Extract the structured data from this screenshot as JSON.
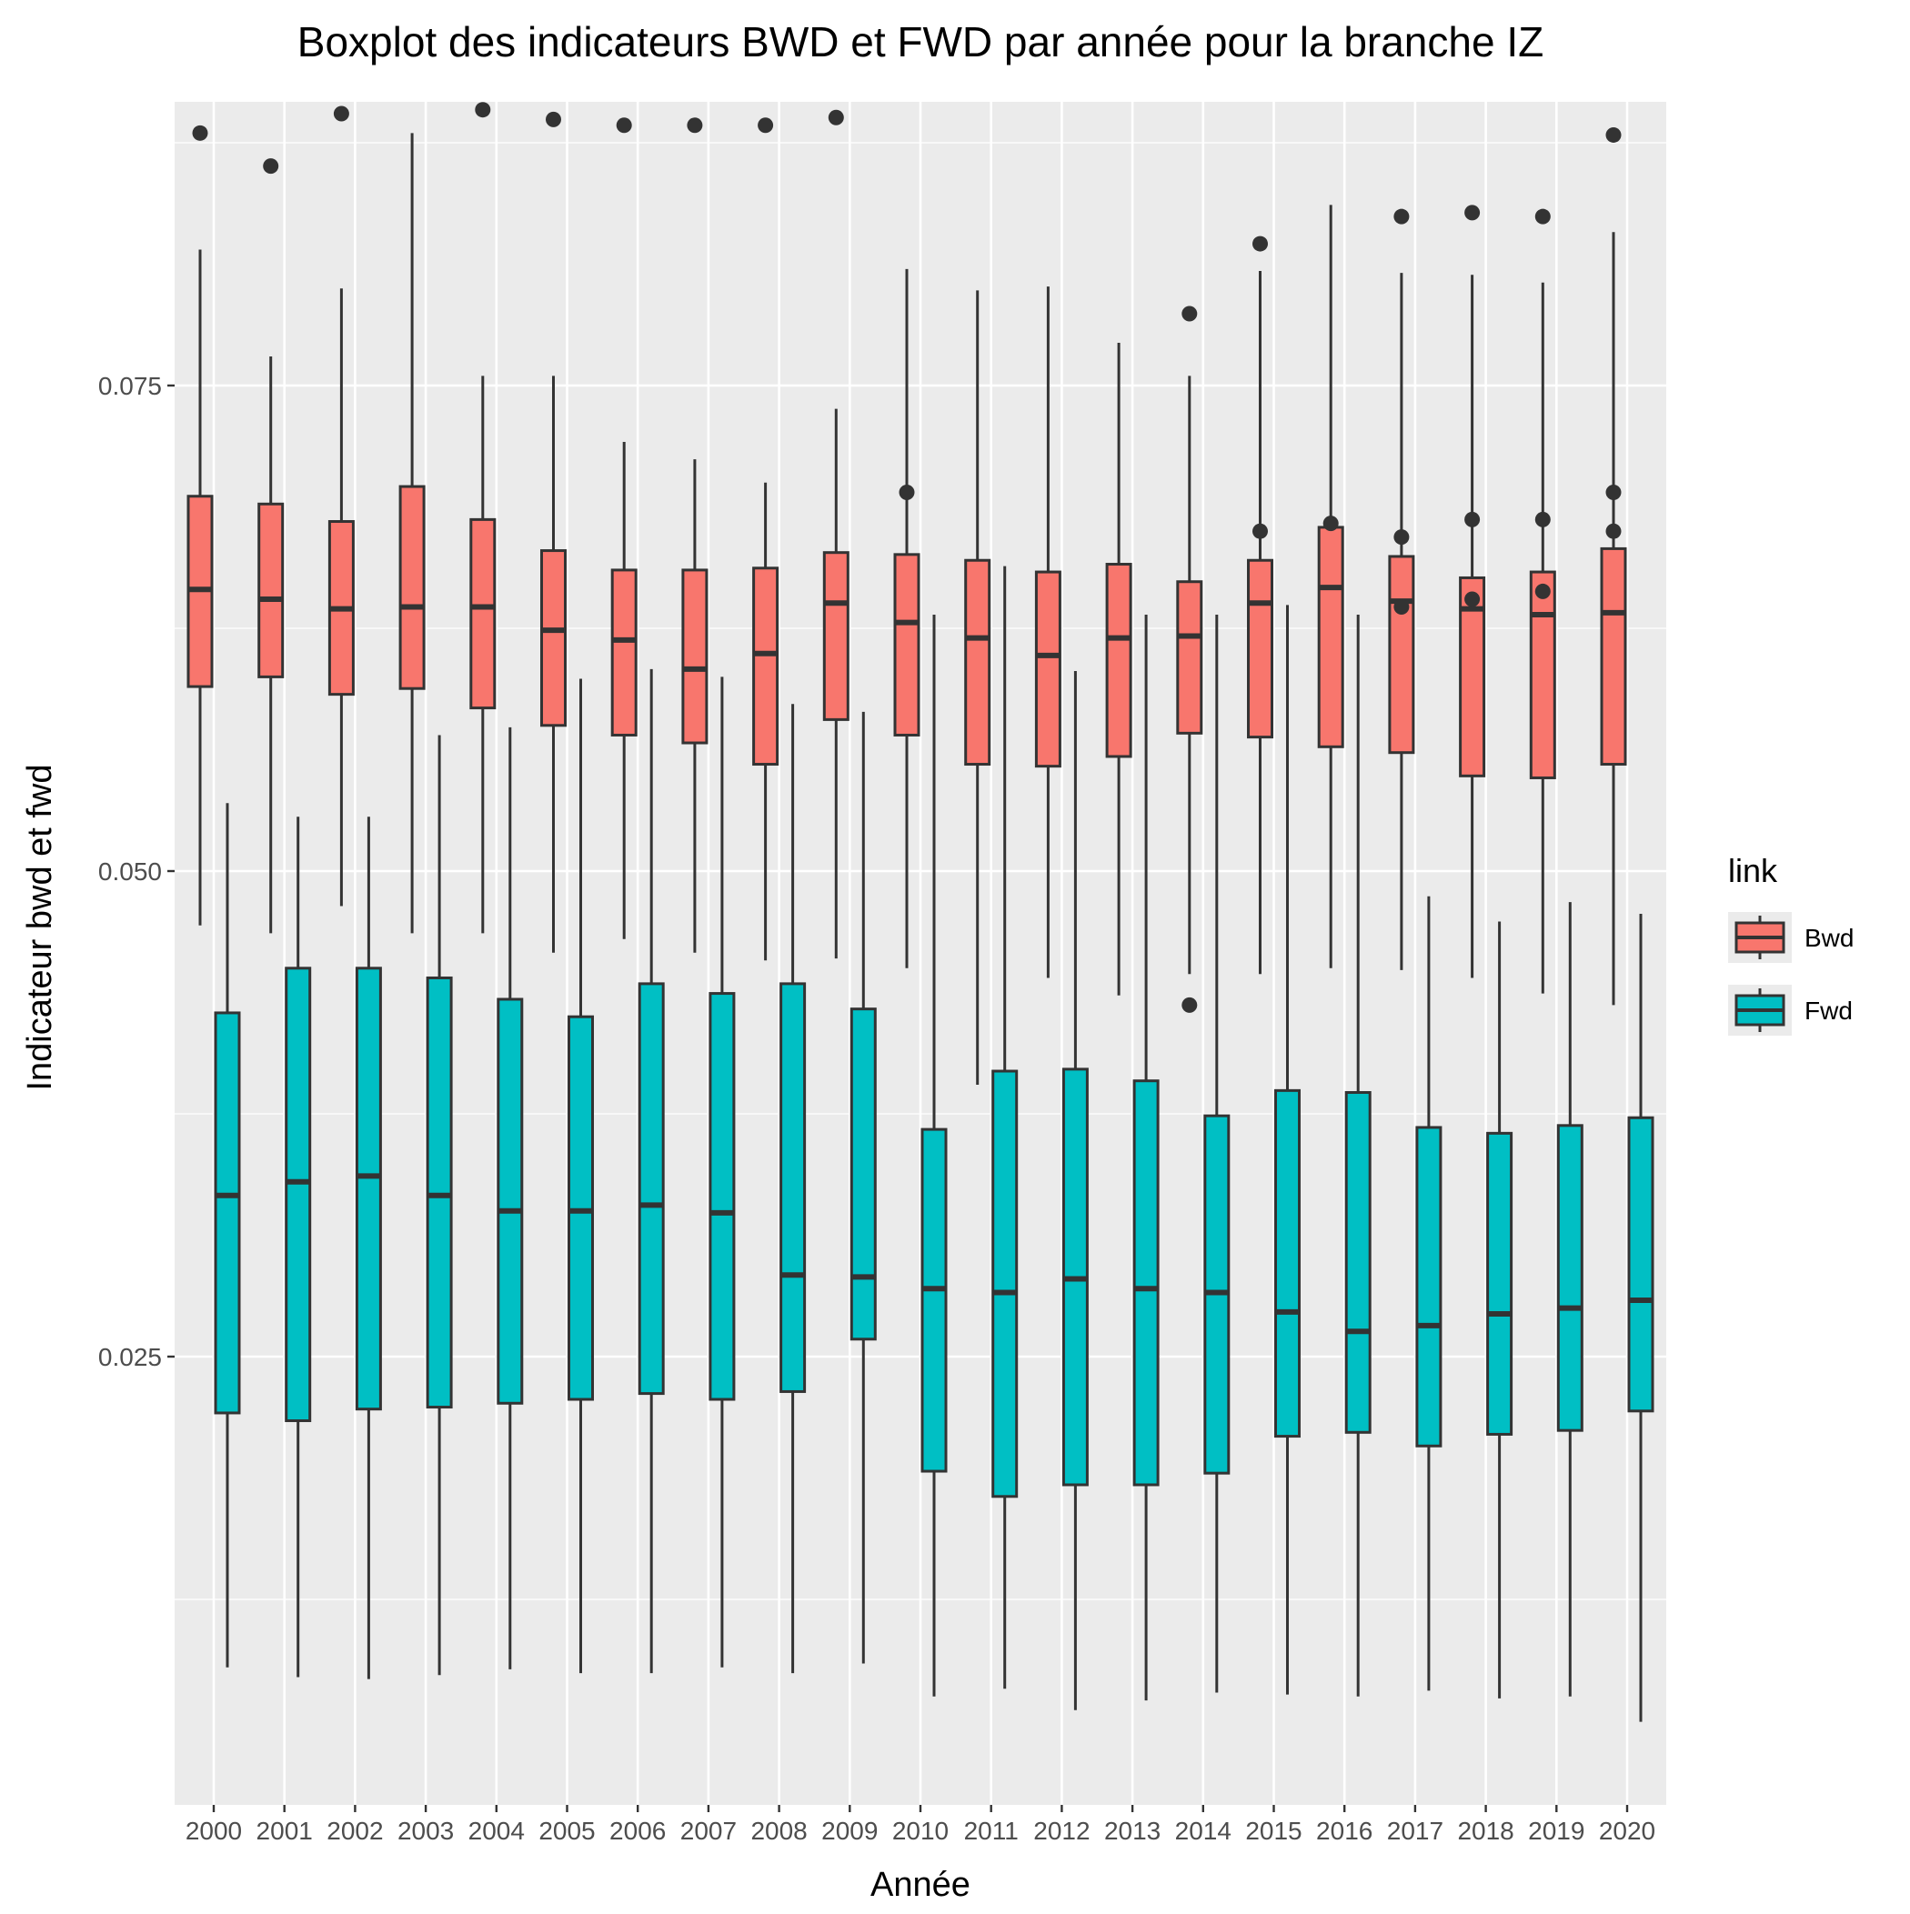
{
  "chart_data": {
    "type": "boxplot",
    "title": "Boxplot des indicateurs BWD et FWD par année pour la branche IZ",
    "xlabel": "Année",
    "ylabel": "Indicateur bwd et fwd",
    "categories": [
      "2000",
      "2001",
      "2002",
      "2003",
      "2004",
      "2005",
      "2006",
      "2007",
      "2008",
      "2009",
      "2010",
      "2011",
      "2012",
      "2013",
      "2014",
      "2015",
      "2016",
      "2017",
      "2018",
      "2019",
      "2020"
    ],
    "ylim": [
      0.0,
      0.094
    ],
    "yticks": [
      0.025,
      0.05,
      0.075
    ],
    "ytick_labels": [
      "0.025",
      "0.050",
      "0.075"
    ],
    "grid": true,
    "legend": {
      "title": "link",
      "position": "right"
    },
    "series": [
      {
        "name": "Bwd",
        "color": "#F8766D",
        "boxes": [
          {
            "min": 0.0472,
            "q1": 0.0595,
            "median": 0.0645,
            "q3": 0.0693,
            "max": 0.082,
            "outliers": [
              0.088
            ]
          },
          {
            "min": 0.0468,
            "q1": 0.06,
            "median": 0.064,
            "q3": 0.0689,
            "max": 0.0765,
            "outliers": [
              0.0863
            ]
          },
          {
            "min": 0.0482,
            "q1": 0.0591,
            "median": 0.0635,
            "q3": 0.068,
            "max": 0.08,
            "outliers": [
              0.089
            ]
          },
          {
            "min": 0.0468,
            "q1": 0.0594,
            "median": 0.0636,
            "q3": 0.0698,
            "max": 0.088,
            "outliers": []
          },
          {
            "min": 0.0468,
            "q1": 0.0584,
            "median": 0.0636,
            "q3": 0.0681,
            "max": 0.0755,
            "outliers": [
              0.0892
            ]
          },
          {
            "min": 0.0458,
            "q1": 0.0575,
            "median": 0.0624,
            "q3": 0.0665,
            "max": 0.0755,
            "outliers": [
              0.0887
            ]
          },
          {
            "min": 0.0465,
            "q1": 0.057,
            "median": 0.0619,
            "q3": 0.0655,
            "max": 0.0721,
            "outliers": [
              0.0884
            ]
          },
          {
            "min": 0.0458,
            "q1": 0.0566,
            "median": 0.0604,
            "q3": 0.0655,
            "max": 0.0712,
            "outliers": [
              0.0884
            ]
          },
          {
            "min": 0.0454,
            "q1": 0.0555,
            "median": 0.0612,
            "q3": 0.0656,
            "max": 0.07,
            "outliers": [
              0.0884
            ]
          },
          {
            "min": 0.0455,
            "q1": 0.0578,
            "median": 0.0638,
            "q3": 0.0664,
            "max": 0.0738,
            "outliers": [
              0.0888
            ]
          },
          {
            "min": 0.045,
            "q1": 0.057,
            "median": 0.0628,
            "q3": 0.0663,
            "max": 0.081,
            "outliers": [
              0.0695
            ]
          },
          {
            "min": 0.039,
            "q1": 0.0555,
            "median": 0.062,
            "q3": 0.066,
            "max": 0.0799,
            "outliers": []
          },
          {
            "min": 0.0445,
            "q1": 0.0554,
            "median": 0.0611,
            "q3": 0.0654,
            "max": 0.0801,
            "outliers": []
          },
          {
            "min": 0.0436,
            "q1": 0.0559,
            "median": 0.062,
            "q3": 0.0658,
            "max": 0.0772,
            "outliers": []
          },
          {
            "min": 0.0447,
            "q1": 0.0571,
            "median": 0.0621,
            "q3": 0.0649,
            "max": 0.0755,
            "outliers": [
              0.0787,
              0.0431
            ]
          },
          {
            "min": 0.0447,
            "q1": 0.0569,
            "median": 0.0638,
            "q3": 0.066,
            "max": 0.0809,
            "outliers": [
              0.0823,
              0.0675
            ]
          },
          {
            "min": 0.045,
            "q1": 0.0564,
            "median": 0.0646,
            "q3": 0.0677,
            "max": 0.0843,
            "outliers": [
              0.0679
            ]
          },
          {
            "min": 0.0449,
            "q1": 0.0561,
            "median": 0.0639,
            "q3": 0.0662,
            "max": 0.0808,
            "outliers": [
              0.0837,
              0.0672,
              0.0636
            ]
          },
          {
            "min": 0.0445,
            "q1": 0.0549,
            "median": 0.0635,
            "q3": 0.0651,
            "max": 0.0807,
            "outliers": [
              0.0839,
              0.0681,
              0.064
            ]
          },
          {
            "min": 0.0437,
            "q1": 0.0548,
            "median": 0.0632,
            "q3": 0.0654,
            "max": 0.0803,
            "outliers": [
              0.0837,
              0.0681,
              0.0644
            ]
          },
          {
            "min": 0.0431,
            "q1": 0.0555,
            "median": 0.0633,
            "q3": 0.0666,
            "max": 0.0829,
            "outliers": [
              0.0879,
              0.0695,
              0.0675
            ]
          }
        ]
      },
      {
        "name": "Fwd",
        "color": "#00BFC4",
        "boxes": [
          {
            "min": 0.009,
            "q1": 0.0221,
            "median": 0.0333,
            "q3": 0.0427,
            "max": 0.0535,
            "outliers": []
          },
          {
            "min": 0.0085,
            "q1": 0.0217,
            "median": 0.034,
            "q3": 0.045,
            "max": 0.0528,
            "outliers": []
          },
          {
            "min": 0.0084,
            "q1": 0.0223,
            "median": 0.0343,
            "q3": 0.045,
            "max": 0.0528,
            "outliers": []
          },
          {
            "min": 0.0086,
            "q1": 0.0224,
            "median": 0.0333,
            "q3": 0.0445,
            "max": 0.057,
            "outliers": []
          },
          {
            "min": 0.0089,
            "q1": 0.0226,
            "median": 0.0325,
            "q3": 0.0434,
            "max": 0.0574,
            "outliers": []
          },
          {
            "min": 0.0087,
            "q1": 0.0228,
            "median": 0.0325,
            "q3": 0.0425,
            "max": 0.0599,
            "outliers": []
          },
          {
            "min": 0.0087,
            "q1": 0.0231,
            "median": 0.0328,
            "q3": 0.0442,
            "max": 0.0604,
            "outliers": []
          },
          {
            "min": 0.009,
            "q1": 0.0228,
            "median": 0.0324,
            "q3": 0.0437,
            "max": 0.06,
            "outliers": []
          },
          {
            "min": 0.0087,
            "q1": 0.0232,
            "median": 0.0292,
            "q3": 0.0442,
            "max": 0.0586,
            "outliers": []
          },
          {
            "min": 0.0092,
            "q1": 0.0259,
            "median": 0.0291,
            "q3": 0.0429,
            "max": 0.0582,
            "outliers": []
          },
          {
            "min": 0.0075,
            "q1": 0.0191,
            "median": 0.0285,
            "q3": 0.0367,
            "max": 0.0632,
            "outliers": []
          },
          {
            "min": 0.0079,
            "q1": 0.0178,
            "median": 0.0283,
            "q3": 0.0397,
            "max": 0.0657,
            "outliers": []
          },
          {
            "min": 0.0068,
            "q1": 0.0184,
            "median": 0.029,
            "q3": 0.0398,
            "max": 0.0603,
            "outliers": []
          },
          {
            "min": 0.0073,
            "q1": 0.0184,
            "median": 0.0285,
            "q3": 0.0392,
            "max": 0.0632,
            "outliers": []
          },
          {
            "min": 0.0077,
            "q1": 0.019,
            "median": 0.0283,
            "q3": 0.0374,
            "max": 0.0632,
            "outliers": []
          },
          {
            "min": 0.0076,
            "q1": 0.0209,
            "median": 0.0273,
            "q3": 0.0387,
            "max": 0.0637,
            "outliers": []
          },
          {
            "min": 0.0075,
            "q1": 0.0211,
            "median": 0.0263,
            "q3": 0.0386,
            "max": 0.0632,
            "outliers": []
          },
          {
            "min": 0.0078,
            "q1": 0.0204,
            "median": 0.0266,
            "q3": 0.0368,
            "max": 0.0487,
            "outliers": []
          },
          {
            "min": 0.0074,
            "q1": 0.021,
            "median": 0.0272,
            "q3": 0.0365,
            "max": 0.0474,
            "outliers": []
          },
          {
            "min": 0.0075,
            "q1": 0.0212,
            "median": 0.0275,
            "q3": 0.0369,
            "max": 0.0484,
            "outliers": []
          },
          {
            "min": 0.0062,
            "q1": 0.0222,
            "median": 0.0279,
            "q3": 0.0373,
            "max": 0.0478,
            "outliers": []
          }
        ]
      }
    ]
  }
}
